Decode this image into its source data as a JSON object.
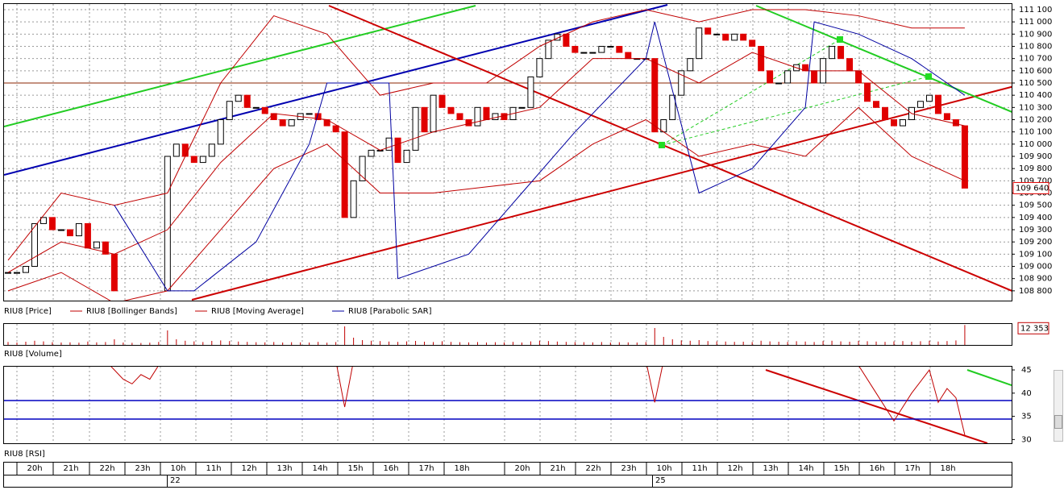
{
  "chart_data": [
    {
      "type": "candlestick",
      "series": [
        {
          "name": "RIU8 [Price]",
          "color": "#e00000",
          "up_color": "#ffffff",
          "values": [
            108950,
            108950,
            109000,
            109350,
            109400,
            109300,
            109300,
            109250,
            109350,
            109150,
            109200,
            109100,
            108800,
            null,
            null,
            null,
            null,
            null,
            109900,
            110000,
            109900,
            109850,
            109900,
            110000,
            110200,
            110350,
            110400,
            110300,
            110300,
            110250,
            110200,
            110150,
            110200,
            110250,
            110250,
            110200,
            110150,
            110100,
            109400,
            109700,
            109900,
            109950,
            109950,
            110050,
            109850,
            109950,
            110300,
            110100,
            110400,
            110300,
            110250,
            110200,
            110150,
            110300,
            110200,
            110250,
            110200,
            110300,
            110300,
            110550,
            110700,
            110850,
            110900,
            110800,
            110750,
            110750,
            110750,
            110800,
            110800,
            110750,
            110700,
            110700,
            110700,
            110100,
            110200,
            110400,
            110600,
            110700,
            110950,
            110900,
            110900,
            110850,
            110900,
            110850,
            110800,
            110600,
            110500,
            110500,
            110600,
            110650,
            110600,
            110500,
            110700,
            110800,
            110700,
            110600,
            110500,
            110350,
            110300,
            110200,
            110150,
            110200,
            110300,
            110350,
            110400,
            110250,
            110200,
            110150,
            109640
          ],
          "last_label": "109 640"
        },
        {
          "name": "RIU8 [Bollinger Bands]",
          "color": "#c00000",
          "x": [
            0,
            6,
            12,
            18,
            24,
            30,
            36,
            42,
            48,
            54,
            60,
            66,
            72,
            78,
            84,
            90,
            96,
            102,
            108
          ],
          "upper": [
            109050,
            109600,
            109500,
            109600,
            110500,
            111050,
            110900,
            110400,
            110500,
            110500,
            110800,
            111000,
            111100,
            111000,
            111100,
            111100,
            111050,
            110950,
            110950
          ],
          "lower": [
            108800,
            108950,
            108700,
            108800,
            109300,
            109800,
            110000,
            109600,
            109600,
            109650,
            109700,
            110000,
            110200,
            109900,
            110000,
            109900,
            110300,
            109900,
            109700
          ]
        },
        {
          "name": "RIU8 [Moving Average]",
          "color": "#c00000",
          "x": [
            0,
            6,
            12,
            18,
            24,
            30,
            36,
            42,
            48,
            54,
            60,
            66,
            72,
            78,
            84,
            90,
            96,
            102,
            108
          ],
          "values": [
            108950,
            109200,
            109100,
            109300,
            109850,
            110250,
            110200,
            109950,
            110100,
            110200,
            110300,
            110700,
            110700,
            110500,
            110750,
            110600,
            110600,
            110250,
            110150
          ]
        },
        {
          "name": "RIU8 [Parabolic SAR]",
          "color": "#0000a0",
          "x": [
            12,
            18,
            21,
            28,
            34,
            36,
            43,
            44,
            52,
            58,
            64,
            72,
            73,
            78,
            84,
            90,
            91,
            96,
            102,
            108
          ],
          "values": [
            109500,
            108800,
            108800,
            109200,
            110000,
            110500,
            110500,
            108900,
            109100,
            109600,
            110100,
            110700,
            111000,
            109600,
            109800,
            110300,
            111000,
            110900,
            110700,
            110400
          ]
        }
      ],
      "ylim": [
        108720,
        111146
      ],
      "yticks": [
        {
          "value": 108800,
          "label": "108 800"
        },
        {
          "value": 108900,
          "label": "108 900"
        },
        {
          "value": 109000,
          "label": "109 000"
        },
        {
          "value": 109100,
          "label": "109 100"
        },
        {
          "value": 109200,
          "label": "109 200"
        },
        {
          "value": 109300,
          "label": "109 300"
        },
        {
          "value": 109400,
          "label": "109 400"
        },
        {
          "value": 109500,
          "label": "109 500"
        },
        {
          "value": 109600,
          "label": "109 600"
        },
        {
          "value": 109700,
          "label": "109 700"
        },
        {
          "value": 109800,
          "label": "109 800"
        },
        {
          "value": 109900,
          "label": "109 900"
        },
        {
          "value": 110000,
          "label": "110 000"
        },
        {
          "value": 110100,
          "label": "110 100"
        },
        {
          "value": 110200,
          "label": "110 200"
        },
        {
          "value": 110300,
          "label": "110 300"
        },
        {
          "value": 110400,
          "label": "110 400"
        },
        {
          "value": 110500,
          "label": "110 500"
        },
        {
          "value": 110600,
          "label": "110 600"
        },
        {
          "value": 110700,
          "label": "110 700"
        },
        {
          "value": 110800,
          "label": "110 800"
        },
        {
          "value": 110900,
          "label": "110 900"
        },
        {
          "value": 111000,
          "label": "111 000"
        },
        {
          "value": 111100,
          "label": "111 100"
        }
      ],
      "grid": true
    },
    {
      "type": "bar",
      "legend": "RIU8 [Volume]",
      "color": "#c00000",
      "values": [
        1800,
        1500,
        2000,
        2600,
        2200,
        1700,
        1500,
        1600,
        1400,
        2100,
        1600,
        1800,
        3500,
        1500,
        1300,
        1200,
        1400,
        1900,
        9000,
        3500,
        2600,
        2200,
        1800,
        2500,
        2800,
        2400,
        2100,
        1900,
        1700,
        1600,
        1800,
        1500,
        1700,
        1600,
        1500,
        1900,
        1400,
        1800,
        11500,
        4500,
        3000,
        2600,
        2400,
        2100,
        1900,
        2200,
        2500,
        2000,
        1800,
        2300,
        1900,
        1700,
        1600,
        1800,
        1500,
        1700,
        1600,
        1900,
        1500,
        2200,
        2600,
        2400,
        2100,
        1900,
        1800,
        1700,
        1600,
        1800,
        1500,
        1700,
        1600,
        1500,
        1800,
        10500,
        5000,
        3500,
        2800,
        2600,
        3000,
        2400,
        2200,
        2100,
        1900,
        2000,
        1800,
        2600,
        2200,
        2000,
        1900,
        2300,
        2100,
        1800,
        2400,
        2600,
        2200,
        2000,
        2500,
        2300,
        2100,
        1900,
        2200,
        2400,
        2000,
        2300,
        2600,
        2100,
        2400,
        2800,
        12353
      ],
      "last_label": "12 353",
      "ylim": [
        0,
        13000
      ]
    },
    {
      "type": "line",
      "series": [
        {
          "name": "RIU8 [RSI]",
          "color": "#c00000",
          "x": [
            11,
            12,
            13,
            14,
            15,
            16,
            17,
            37,
            38,
            39,
            72,
            73,
            74,
            96,
            98,
            100,
            102,
            104,
            105,
            106,
            107,
            108
          ],
          "values": [
            47,
            45,
            43,
            42,
            44,
            43,
            46,
            47,
            37,
            47,
            47,
            38,
            47,
            46,
            40,
            34,
            40,
            45,
            38,
            41,
            39,
            31
          ]
        }
      ],
      "levels": [
        38.4,
        34.4
      ],
      "level_color": "#0000c0",
      "ylim": [
        29.2,
        45.7
      ],
      "yticks": [
        30,
        35,
        40,
        45
      ]
    }
  ],
  "time_axis": {
    "hours": [
      "20h",
      "21h",
      "22h",
      "23h",
      "10h",
      "11h",
      "12h",
      "13h",
      "14h",
      "15h",
      "16h",
      "17h",
      "18h",
      "20h",
      "21h",
      "22h",
      "23h",
      "10h",
      "11h",
      "12h",
      "13h",
      "14h",
      "15h",
      "16h",
      "17h",
      "18h"
    ],
    "dates": [
      "22",
      "25"
    ]
  }
}
